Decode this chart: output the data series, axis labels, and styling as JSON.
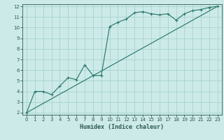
{
  "xlabel": "Humidex (Indice chaleur)",
  "bg_color": "#cceae8",
  "grid_color": "#a8d4d0",
  "line_color": "#2d7a6e",
  "tick_color": "#2d5a52",
  "xlim": [
    -0.5,
    23.5
  ],
  "ylim": [
    1.8,
    12.2
  ],
  "xticks": [
    0,
    1,
    2,
    3,
    4,
    5,
    6,
    7,
    8,
    9,
    10,
    11,
    12,
    13,
    14,
    15,
    16,
    17,
    18,
    19,
    20,
    21,
    22,
    23
  ],
  "yticks": [
    2,
    3,
    4,
    5,
    6,
    7,
    8,
    9,
    10,
    11,
    12
  ],
  "line1_x": [
    0,
    1,
    2,
    3,
    4,
    5,
    6,
    7,
    8,
    9,
    10,
    11,
    12,
    13,
    14,
    15,
    16,
    17,
    18,
    19,
    20,
    21,
    22,
    23
  ],
  "line1_y": [
    2.0,
    4.0,
    4.0,
    3.7,
    4.5,
    5.3,
    5.1,
    6.5,
    5.5,
    5.5,
    10.1,
    10.5,
    10.8,
    11.4,
    11.5,
    11.3,
    11.2,
    11.3,
    10.7,
    11.3,
    11.6,
    11.7,
    11.9,
    12.0
  ],
  "line2_x": [
    0,
    1,
    2,
    3,
    4,
    5,
    6,
    7,
    8,
    9,
    10,
    11,
    12,
    13,
    14,
    15,
    16,
    17,
    18,
    19,
    20,
    21,
    22,
    23
  ],
  "line2_y": [
    2.0,
    2.43,
    2.87,
    3.3,
    3.74,
    4.17,
    4.61,
    5.04,
    5.48,
    5.91,
    6.35,
    6.78,
    7.22,
    7.65,
    8.09,
    8.52,
    8.96,
    9.39,
    9.83,
    10.26,
    10.7,
    11.13,
    11.57,
    12.0
  ]
}
